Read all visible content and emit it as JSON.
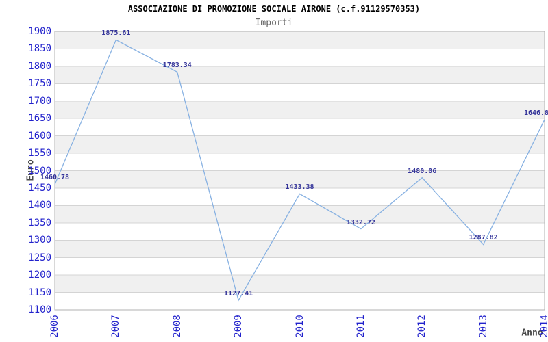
{
  "chart_data": {
    "type": "line",
    "title": "ASSOCIAZIONE DI PROMOZIONE SOCIALE AIRONE (c.f.91129570353)",
    "subtitle": "Importi",
    "xlabel": "Anno",
    "ylabel": "Euro",
    "x": [
      "2006",
      "2007",
      "2008",
      "2009",
      "2010",
      "2011",
      "2012",
      "2013",
      "2014"
    ],
    "values": [
      1460.78,
      1875.61,
      1783.34,
      1127.41,
      1433.38,
      1332.72,
      1480.06,
      1287.82,
      1646.8
    ],
    "point_labels": [
      "1460.78",
      "1875.61",
      "1783.34",
      "1127.41",
      "1433.38",
      "1332.72",
      "1480.06",
      "1287.82",
      "1646.8"
    ],
    "label_dx": [
      0,
      0,
      0,
      0,
      0,
      0,
      0,
      0,
      -12
    ],
    "ylim": [
      1100,
      1900
    ],
    "ytick_step": 50,
    "grid": true,
    "legend": "none",
    "colors": {
      "line": "#87b1e2",
      "tick_labels": "#2222cc",
      "point_labels": "#333399",
      "band_gray": "#f0f0f0",
      "band_white": "#ffffff",
      "gridline": "#d4d4d4",
      "plot_border": "#b0b0b0",
      "title": "#000000",
      "subtitle": "#666666",
      "axis_titles": "#484848"
    }
  }
}
